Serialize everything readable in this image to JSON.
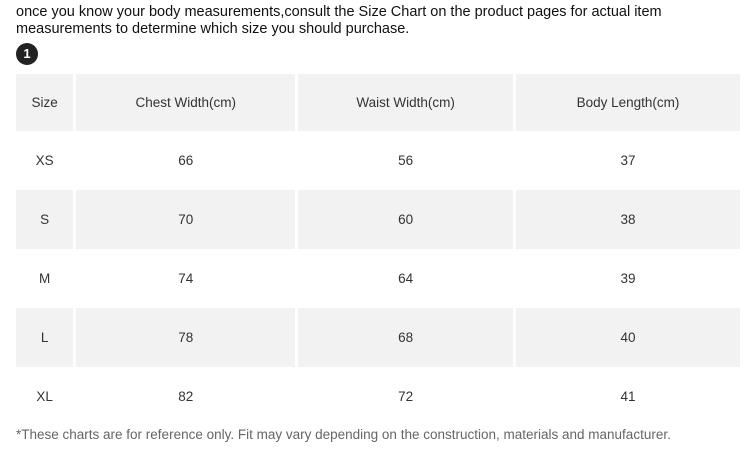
{
  "intro_text": "once you know your body measurements,consult the Size Chart on the product pages for actual item measurements to determine which size you should purchase.",
  "step_number": "1",
  "table": {
    "headers": [
      "Size",
      "Chest Width(cm)",
      "Waist Width(cm)",
      "Body Length(cm)"
    ],
    "rows": [
      [
        "XS",
        "66",
        "56",
        "37"
      ],
      [
        "S",
        "70",
        "60",
        "38"
      ],
      [
        "M",
        "74",
        "64",
        "39"
      ],
      [
        "L",
        "78",
        "68",
        "40"
      ],
      [
        "XL",
        "82",
        "72",
        "41"
      ]
    ]
  },
  "footnote": "*These charts are for reference only. Fit may vary depending on the construction, materials and manufacturer."
}
